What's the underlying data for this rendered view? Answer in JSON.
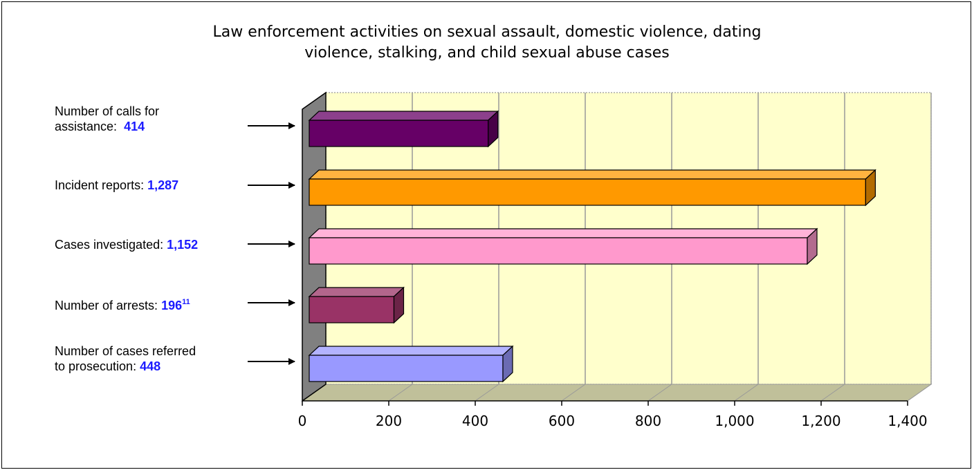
{
  "chart_data": {
    "type": "bar",
    "orientation": "horizontal",
    "title": "Law enforcement activities on sexual assault, domestic violence, dating violence, stalking, and child sexual abuse cases",
    "title_lines": [
      "Law enforcement activities on sexual assault, domestic violence, dating",
      "violence, stalking, and child sexual abuse cases"
    ],
    "categories": [
      {
        "lines": [
          "Number of calls for",
          "assistance:"
        ],
        "value_text": "414",
        "footnote": "",
        "color": "#660066"
      },
      {
        "lines": [
          "Incident reports:"
        ],
        "value_text": "1,287",
        "footnote": "",
        "color": "#ff9900"
      },
      {
        "lines": [
          "Cases investigated:"
        ],
        "value_text": "1,152",
        "footnote": "",
        "color": "#ff99cc"
      },
      {
        "lines": [
          "Number of arrests:"
        ],
        "value_text": "196",
        "footnote": "11",
        "color": "#993366"
      },
      {
        "lines": [
          "Number of cases referred",
          "to prosecution:"
        ],
        "value_text": "448",
        "footnote": "",
        "color": "#9999ff"
      }
    ],
    "values": [
      414,
      1287,
      1152,
      196,
      448
    ],
    "xlim": [
      0,
      1400
    ],
    "xticks": [
      "0",
      "200",
      "400",
      "600",
      "800",
      "1,000",
      "1,200",
      "1,400"
    ],
    "tick_values": [
      0,
      200,
      400,
      600,
      800,
      1000,
      1200,
      1400
    ],
    "grid": true,
    "plot_background": "#ffffcc",
    "floor_color": "#c0c09a",
    "wall_color": "#808080",
    "xlabel": "",
    "ylabel": ""
  }
}
